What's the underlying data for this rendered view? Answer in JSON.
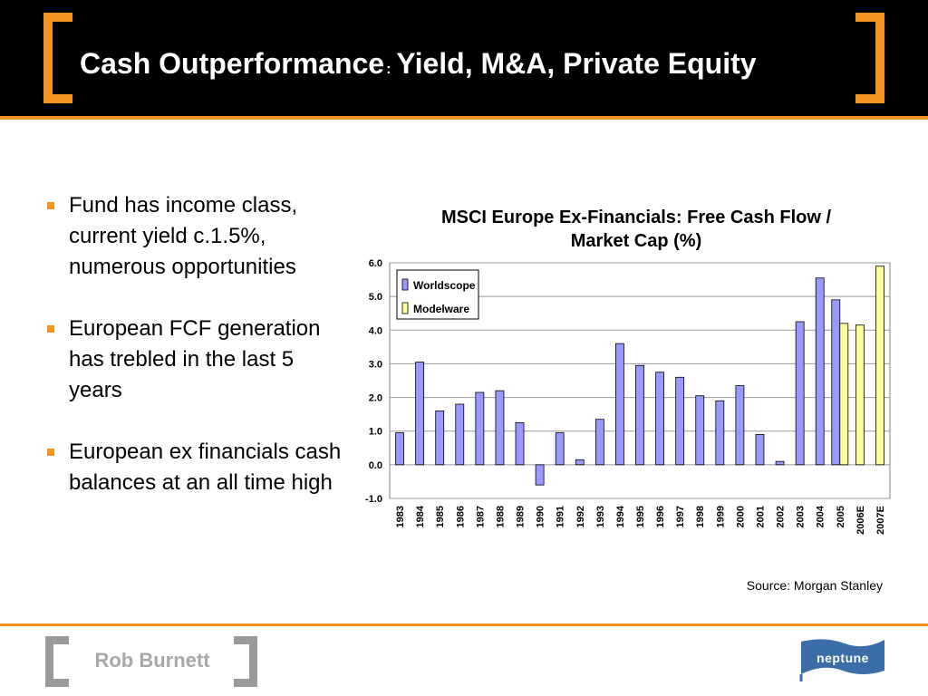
{
  "slide": {
    "title_main": "Cash Outperformance",
    "title_sep": ":",
    "title_rest": "Yield, M&A, Private Equity"
  },
  "bullets": [
    "Fund has income class, current yield c.1.5%, numerous opportunities",
    "European FCF generation has trebled in the last 5 years",
    "European ex financials cash balances at an all time high"
  ],
  "chart_data": {
    "type": "bar",
    "title": "MSCI Europe Ex-Financials: Free Cash Flow / Market Cap (%)",
    "xlabel": "",
    "ylabel": "",
    "ylim": [
      -1.0,
      6.0
    ],
    "yticks": [
      "6.0",
      "5.0",
      "4.0",
      "3.0",
      "2.0",
      "1.0",
      "0.0",
      "-1.0"
    ],
    "grid": true,
    "legend_position": "top-left",
    "categories": [
      "1983",
      "1984",
      "1985",
      "1986",
      "1987",
      "1988",
      "1989",
      "1990",
      "1991",
      "1992",
      "1993",
      "1994",
      "1995",
      "1996",
      "1997",
      "1998",
      "1999",
      "2000",
      "2001",
      "2002",
      "2003",
      "2004",
      "2005",
      "2006E",
      "2007E"
    ],
    "series": [
      {
        "name": "Worldscope",
        "color": "#9999ff",
        "values": [
          0.95,
          3.05,
          1.6,
          1.8,
          2.15,
          2.2,
          1.25,
          -0.6,
          0.95,
          0.15,
          1.35,
          3.6,
          2.95,
          2.75,
          2.6,
          2.05,
          1.9,
          2.35,
          0.9,
          0.1,
          4.25,
          5.55,
          4.9,
          null,
          null
        ]
      },
      {
        "name": "Modelware",
        "color": "#ffff99",
        "values": [
          null,
          null,
          null,
          null,
          null,
          null,
          null,
          null,
          null,
          null,
          null,
          null,
          null,
          null,
          null,
          null,
          null,
          null,
          null,
          null,
          null,
          null,
          4.2,
          4.15,
          5.9
        ]
      }
    ]
  },
  "source": "Source: Morgan Stanley",
  "footer": {
    "presenter": "Rob Burnett",
    "logo_text": "neptune"
  },
  "colors": {
    "accent": "#f39321",
    "header_bg": "#000000"
  }
}
